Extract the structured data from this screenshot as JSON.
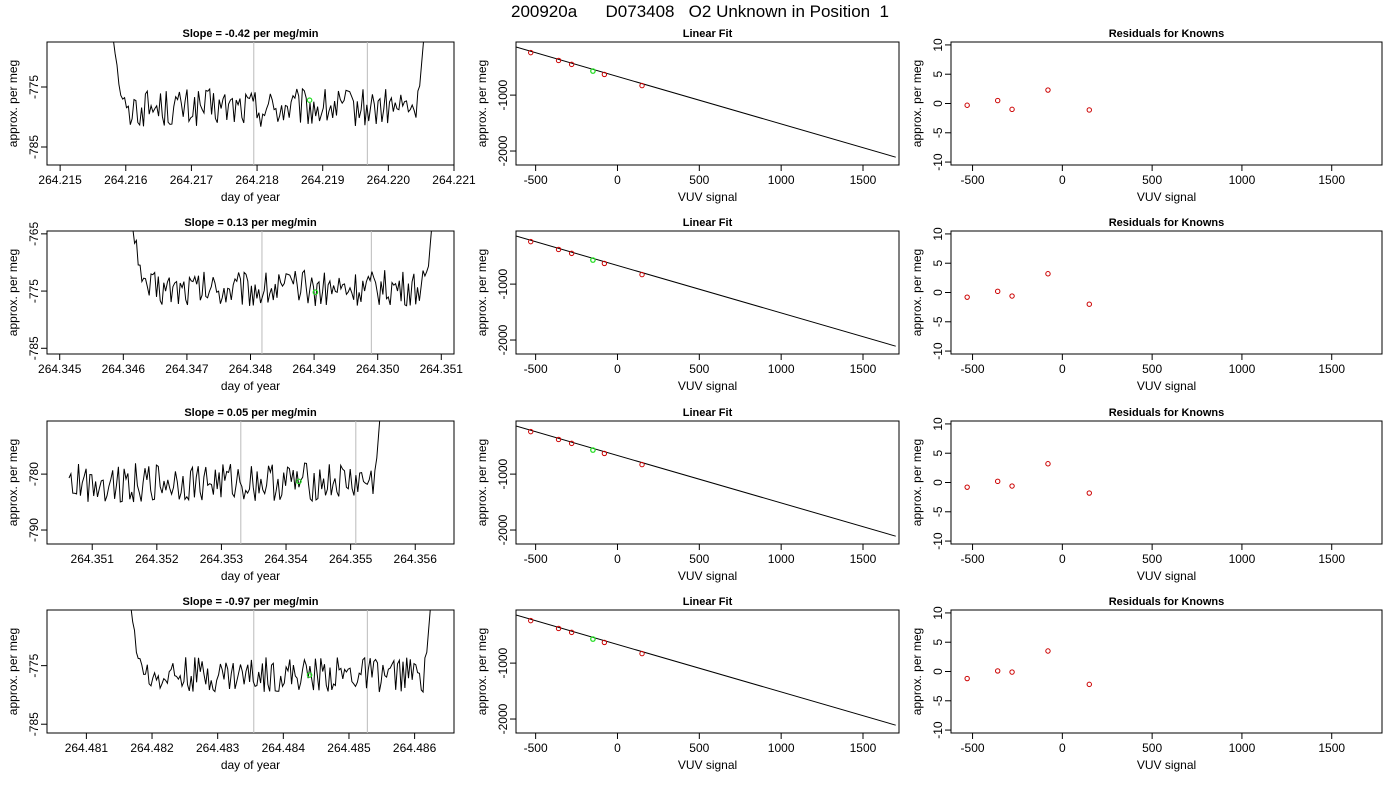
{
  "title": "200920a      D073408   O2 Unknown in Position  1",
  "colors": {
    "line": "#000000",
    "known": "#cc0000",
    "unknown": "#22dd22",
    "vline": "#bbbbbb",
    "frame": "#000000"
  },
  "chart_data": [
    {
      "type": "line",
      "title": "Slope =  -0.42  per meg/min",
      "xlabel": "day of year",
      "ylabel": "approx. per meg",
      "xlim": [
        264.2148,
        264.221
      ],
      "ylim": [
        -788,
        -767.5
      ],
      "xticks": [
        264.215,
        264.216,
        264.217,
        264.218,
        264.219,
        264.22,
        264.221
      ],
      "yticks": [
        -775,
        -785
      ],
      "vlines": [
        264.21795,
        264.21968
      ],
      "x_range": [
        264.21578,
        264.22068
      ],
      "trace_shape": "left_high",
      "noise_center": -778.5,
      "noise_amp": 3.2,
      "unknown_point": {
        "x": 264.2188,
        "y": -777.2
      }
    },
    {
      "type": "line",
      "title": "Linear Fit",
      "xlabel": "VUV signal",
      "ylabel": "approx. per meg",
      "xlim": [
        -620,
        1720
      ],
      "ylim": [
        -2250,
        -50
      ],
      "xticks": [
        -500,
        0,
        500,
        1000,
        1500
      ],
      "yticks": [
        -1000,
        -2000
      ],
      "fit_line": [
        [
          -620,
          -140
        ],
        [
          1700,
          -2110
        ]
      ],
      "knowns": [
        [
          -530,
          -240
        ],
        [
          -360,
          -380
        ],
        [
          -280,
          -450
        ],
        [
          -80,
          -630
        ],
        [
          150,
          -830
        ]
      ],
      "unknown": [
        -150,
        -570
      ]
    },
    {
      "type": "scatter",
      "title": "Residuals for Knowns",
      "xlabel": "VUV signal",
      "ylabel": "approx. per meg",
      "xlim": [
        -620,
        1780
      ],
      "ylim": [
        -10.5,
        10.5
      ],
      "xticks": [
        -500,
        0,
        500,
        1000,
        1500
      ],
      "yticks": [
        10,
        5,
        0,
        -5,
        -10
      ],
      "points": [
        [
          -530,
          -0.3
        ],
        [
          -360,
          0.5
        ],
        [
          -280,
          -1.0
        ],
        [
          -80,
          2.3
        ],
        [
          150,
          -1.1
        ]
      ]
    },
    {
      "type": "line",
      "title": "Slope =  0.13  per meg/min",
      "xlabel": "day of year",
      "ylabel": "approx. per meg",
      "xlim": [
        264.3448,
        264.3512
      ],
      "ylim": [
        -786,
        -764.5
      ],
      "xticks": [
        264.345,
        264.346,
        264.347,
        264.348,
        264.349,
        264.35,
        264.351
      ],
      "yticks": [
        -765,
        -775,
        -785
      ],
      "vlines": [
        264.34818,
        264.3499
      ],
      "x_range": [
        264.34612,
        264.351
      ],
      "trace_shape": "left_high",
      "noise_center": -774.5,
      "noise_amp": 3.2,
      "unknown_point": {
        "x": 264.34902,
        "y": -775.2
      }
    },
    {
      "type": "line",
      "title": "Linear Fit",
      "xlabel": "VUV signal",
      "ylabel": "approx. per meg",
      "xlim": [
        -620,
        1720
      ],
      "ylim": [
        -2250,
        -50
      ],
      "xticks": [
        -500,
        0,
        500,
        1000,
        1500
      ],
      "yticks": [
        -1000,
        -2000
      ],
      "fit_line": [
        [
          -620,
          -140
        ],
        [
          1700,
          -2110
        ]
      ],
      "knowns": [
        [
          -530,
          -240
        ],
        [
          -360,
          -380
        ],
        [
          -280,
          -450
        ],
        [
          -80,
          -630
        ],
        [
          150,
          -830
        ]
      ],
      "unknown": [
        -150,
        -570
      ]
    },
    {
      "type": "scatter",
      "title": "Residuals for Knowns",
      "xlabel": "VUV signal",
      "ylabel": "approx. per meg",
      "xlim": [
        -620,
        1780
      ],
      "ylim": [
        -10.5,
        10.5
      ],
      "xticks": [
        -500,
        0,
        500,
        1000,
        1500
      ],
      "yticks": [
        10,
        5,
        0,
        -5,
        -10
      ],
      "points": [
        [
          -530,
          -0.8
        ],
        [
          -360,
          0.2
        ],
        [
          -280,
          -0.6
        ],
        [
          -80,
          3.2
        ],
        [
          150,
          -2.0
        ]
      ]
    },
    {
      "type": "line",
      "title": "Slope =  0.05  per meg/min",
      "xlabel": "day of year",
      "ylabel": "approx. per meg",
      "xlim": [
        264.3503,
        264.3566
      ],
      "ylim": [
        -792.5,
        -770.5
      ],
      "xticks": [
        264.351,
        264.352,
        264.353,
        264.354,
        264.355,
        264.356
      ],
      "yticks": [
        -780,
        -790
      ],
      "vlines": [
        264.3533,
        264.35508
      ],
      "x_range": [
        264.35064,
        264.35564
      ],
      "trace_shape": "flat_then_right_high",
      "noise_center": -781.5,
      "noise_amp": 3.5,
      "unknown_point": {
        "x": 264.3542,
        "y": -781.3
      }
    },
    {
      "type": "line",
      "title": "Linear Fit",
      "xlabel": "VUV signal",
      "ylabel": "approx. per meg",
      "xlim": [
        -620,
        1720
      ],
      "ylim": [
        -2250,
        -50
      ],
      "xticks": [
        -500,
        0,
        500,
        1000,
        1500
      ],
      "yticks": [
        -1000,
        -2000
      ],
      "fit_line": [
        [
          -620,
          -140
        ],
        [
          1700,
          -2110
        ]
      ],
      "knowns": [
        [
          -530,
          -240
        ],
        [
          -360,
          -380
        ],
        [
          -280,
          -450
        ],
        [
          -80,
          -630
        ],
        [
          150,
          -830
        ]
      ],
      "unknown": [
        -150,
        -570
      ]
    },
    {
      "type": "scatter",
      "title": "Residuals for Knowns",
      "xlabel": "VUV signal",
      "ylabel": "approx. per meg",
      "xlim": [
        -620,
        1780
      ],
      "ylim": [
        -10.5,
        10.5
      ],
      "xticks": [
        -500,
        0,
        500,
        1000,
        1500
      ],
      "yticks": [
        10,
        5,
        0,
        -5,
        -10
      ],
      "points": [
        [
          -530,
          -0.8
        ],
        [
          -360,
          0.2
        ],
        [
          -280,
          -0.6
        ],
        [
          -80,
          3.2
        ],
        [
          150,
          -1.8
        ]
      ]
    },
    {
      "type": "line",
      "title": "Slope =  -0.97  per meg/min",
      "xlabel": "day of year",
      "ylabel": "approx. per meg",
      "xlim": [
        264.4804,
        264.4866
      ],
      "ylim": [
        -786.5,
        -765.5
      ],
      "xticks": [
        264.481,
        264.482,
        264.483,
        264.484,
        264.485,
        264.486
      ],
      "yticks": [
        -775,
        -785
      ],
      "vlines": [
        264.48355,
        264.48528
      ],
      "x_range": [
        264.48165,
        264.48638
      ],
      "trace_shape": "left_high",
      "noise_center": -776.5,
      "noise_amp": 3.0,
      "unknown_point": {
        "x": 264.4844,
        "y": -776.6
      }
    },
    {
      "type": "line",
      "title": "Linear Fit",
      "xlabel": "VUV signal",
      "ylabel": "approx. per meg",
      "xlim": [
        -620,
        1720
      ],
      "ylim": [
        -2250,
        -50
      ],
      "xticks": [
        -500,
        0,
        500,
        1000,
        1500
      ],
      "yticks": [
        -1000,
        -2000
      ],
      "fit_line": [
        [
          -620,
          -140
        ],
        [
          1700,
          -2110
        ]
      ],
      "knowns": [
        [
          -530,
          -240
        ],
        [
          -360,
          -380
        ],
        [
          -280,
          -450
        ],
        [
          -80,
          -630
        ],
        [
          150,
          -830
        ]
      ],
      "unknown": [
        -150,
        -570
      ]
    },
    {
      "type": "scatter",
      "title": "Residuals for Knowns",
      "xlabel": "VUV signal",
      "ylabel": "approx. per meg",
      "xlim": [
        -620,
        1780
      ],
      "ylim": [
        -10.5,
        10.5
      ],
      "xticks": [
        -500,
        0,
        500,
        1000,
        1500
      ],
      "yticks": [
        10,
        5,
        0,
        -5,
        -10
      ],
      "points": [
        [
          -530,
          -1.2
        ],
        [
          -360,
          0.1
        ],
        [
          -280,
          -0.1
        ],
        [
          -80,
          3.5
        ],
        [
          150,
          -2.2
        ]
      ]
    }
  ]
}
